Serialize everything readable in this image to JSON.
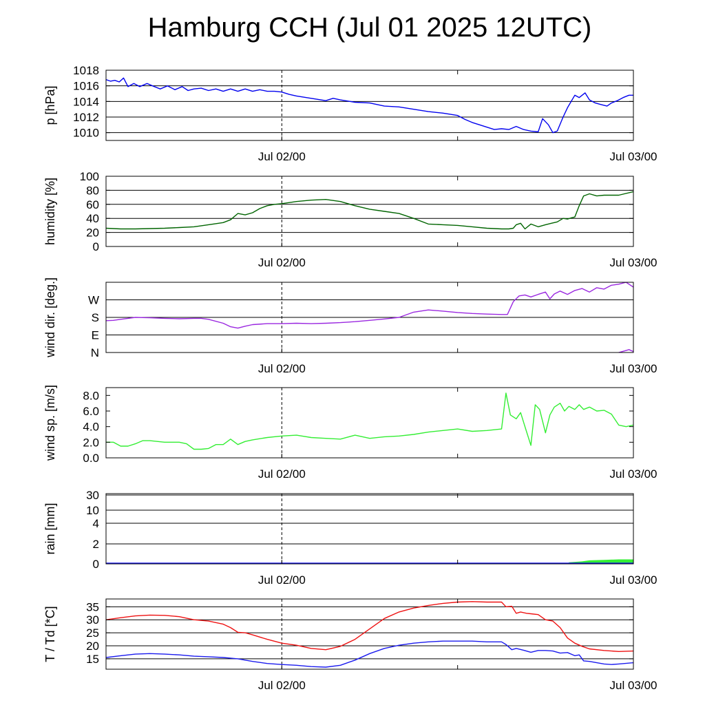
{
  "title": "Hamburg CCH (Jul 01 2025 12UTC)",
  "colors": {
    "pressure": "#0000ee",
    "humidity": "#006400",
    "wind_dir": "#9a27e0",
    "wind_speed": "#33ee33",
    "rain": "#33ee33",
    "temperature": "#ee1111",
    "dewpoint": "#1a1aee"
  },
  "chart_data": [
    {
      "type": "line",
      "id": "pressure",
      "ylabel": "p [hPa]",
      "ylim": [
        1009,
        1018
      ],
      "yticks": [
        1010,
        1012,
        1014,
        1016,
        1018
      ],
      "gridlines": [
        1010,
        1012,
        1014,
        1016
      ],
      "xlim": [
        0,
        36
      ],
      "x_tick_labels": [
        {
          "x": 12,
          "label": "Jul 02/00"
        },
        {
          "x": 36,
          "label": "Jul 03/00"
        }
      ],
      "x_minor_ticks": [
        24
      ],
      "series": [
        {
          "color_key": "pressure",
          "x": [
            0,
            0.3,
            0.6,
            0.9,
            1.2,
            1.5,
            1.9,
            2.3,
            2.8,
            3.3,
            3.7,
            4.2,
            4.7,
            5.2,
            5.6,
            6,
            6.5,
            7,
            7.5,
            8,
            8.5,
            9,
            9.5,
            10,
            10.5,
            11,
            11.5,
            12,
            12.5,
            13,
            14,
            15,
            15.5,
            16,
            17,
            18,
            19,
            20,
            21,
            22,
            23,
            24,
            24.5,
            25,
            25.5,
            26,
            26.5,
            27,
            27.5,
            28,
            28.5,
            29,
            29.5,
            29.8,
            30.2,
            30.5,
            30.8,
            31.2,
            31.5,
            32,
            32.3,
            32.7,
            33,
            33.4,
            33.8,
            34.2,
            34.5,
            34.9,
            35.3,
            35.7,
            36
          ],
          "y": [
            1016.8,
            1016.6,
            1016.7,
            1016.5,
            1017,
            1015.9,
            1016.3,
            1015.9,
            1016.3,
            1015.9,
            1015.6,
            1016,
            1015.5,
            1015.9,
            1015.4,
            1015.6,
            1015.7,
            1015.4,
            1015.6,
            1015.3,
            1015.6,
            1015.3,
            1015.6,
            1015.3,
            1015.5,
            1015.3,
            1015.3,
            1015.2,
            1014.9,
            1014.7,
            1014.4,
            1014.1,
            1014.4,
            1014.2,
            1013.9,
            1013.8,
            1013.4,
            1013.3,
            1013,
            1012.7,
            1012.5,
            1012.2,
            1011.7,
            1011.3,
            1011,
            1010.7,
            1010.4,
            1010.5,
            1010.4,
            1010.8,
            1010.4,
            1010.2,
            1010.1,
            1011.8,
            1011,
            1010,
            1010.2,
            1012,
            1013.2,
            1014.8,
            1014.5,
            1015.1,
            1014.2,
            1013.8,
            1013.6,
            1013.4,
            1013.8,
            1014.1,
            1014.5,
            1014.8,
            1014.8
          ]
        }
      ]
    },
    {
      "type": "line",
      "id": "humidity",
      "ylabel": "humidity [%]",
      "ylim": [
        0,
        100
      ],
      "yticks": [
        0,
        20,
        40,
        60,
        80,
        100
      ],
      "gridlines": [
        20,
        40,
        60,
        80
      ],
      "xlim": [
        0,
        36
      ],
      "x_tick_labels": [
        {
          "x": 12,
          "label": "Jul 02/00"
        },
        {
          "x": 36,
          "label": "Jul 03/00"
        }
      ],
      "x_minor_ticks": [
        24
      ],
      "series": [
        {
          "color_key": "humidity",
          "x": [
            0,
            1,
            2,
            3,
            4,
            5,
            6,
            7,
            8,
            8.5,
            9,
            9.5,
            10,
            10.5,
            11,
            11.5,
            12,
            13,
            14,
            15,
            16,
            17,
            18,
            19,
            20,
            21,
            22,
            23,
            24,
            25,
            26,
            27,
            27.5,
            27.8,
            28,
            28.3,
            28.6,
            29,
            29.5,
            30,
            30.4,
            30.8,
            31.2,
            31.5,
            31.8,
            32,
            32.3,
            32.6,
            33,
            33.5,
            34,
            35,
            36
          ],
          "y": [
            26,
            25,
            25,
            25.5,
            26,
            27,
            28,
            31,
            34,
            38,
            47,
            45,
            48,
            54,
            58,
            60,
            61,
            64,
            66,
            67,
            64,
            58,
            53,
            50,
            47,
            40,
            32,
            31,
            30,
            28,
            26,
            25,
            25,
            26,
            31,
            33,
            25,
            32,
            28,
            31,
            33,
            35,
            40,
            39,
            41,
            42,
            58,
            72,
            75,
            72,
            73,
            73,
            78
          ]
        }
      ]
    },
    {
      "type": "line",
      "id": "wind_dir",
      "ylabel": "wind dir. [deg.]",
      "ylim": [
        0,
        360
      ],
      "ytick_values": [
        0,
        90,
        180,
        270
      ],
      "ytick_labels": [
        "N",
        "E",
        "S",
        "W"
      ],
      "gridlines": [
        90,
        180,
        270
      ],
      "xlim": [
        0,
        36
      ],
      "x_tick_labels": [
        {
          "x": 12,
          "label": "Jul 02/00"
        },
        {
          "x": 36,
          "label": "Jul 03/00"
        }
      ],
      "x_minor_ticks": [
        24
      ],
      "series": [
        {
          "color_key": "wind_dir",
          "x": [
            0,
            0.5,
            1,
            1.5,
            2,
            3,
            4,
            5,
            6,
            6.5,
            7,
            8,
            8.5,
            9,
            9.5,
            10,
            11,
            12,
            13,
            14,
            15,
            16,
            17,
            18,
            19,
            20,
            21,
            22,
            23,
            24,
            25,
            26,
            27,
            27.4,
            27.8,
            28.2,
            28.6,
            29,
            29.5,
            30,
            30.3,
            30.6,
            31,
            31.5,
            32,
            32.5,
            33,
            33.5,
            34,
            34.5,
            35,
            35.5,
            36
          ],
          "y": [
            163,
            165,
            170,
            175,
            180,
            178,
            175,
            173,
            175,
            175,
            170,
            150,
            132,
            125,
            135,
            143,
            148,
            148,
            150,
            148,
            150,
            153,
            158,
            165,
            172,
            180,
            207,
            218,
            212,
            205,
            200,
            197,
            195,
            195,
            260,
            290,
            295,
            285,
            298,
            310,
            275,
            300,
            315,
            298,
            318,
            328,
            310,
            332,
            325,
            345,
            350,
            360,
            335
          ]
        },
        {
          "color_key": "wind_dir",
          "x": [
            35,
            35.4,
            35.7,
            36
          ],
          "y": [
            0,
            8,
            15,
            5
          ]
        }
      ]
    },
    {
      "type": "line",
      "id": "wind_speed",
      "ylabel": "wind sp. [m/s]",
      "ylim": [
        0,
        9
      ],
      "yticks": [
        0,
        2,
        4,
        6,
        8
      ],
      "ytick_labels": [
        "0.0",
        "2.0",
        "4.0",
        "6.0",
        "8.0"
      ],
      "gridlines": [],
      "xlim": [
        0,
        36
      ],
      "x_tick_labels": [
        {
          "x": 12,
          "label": "Jul 02/00"
        },
        {
          "x": 36,
          "label": "Jul 03/00"
        }
      ],
      "x_minor_ticks": [
        24
      ],
      "series": [
        {
          "color_key": "wind_speed",
          "x": [
            0,
            0.5,
            1,
            1.5,
            2,
            2.5,
            3,
            4,
            5,
            5.5,
            6,
            6.5,
            7,
            7.5,
            8,
            8.5,
            9,
            9.5,
            10,
            11,
            12,
            13,
            14,
            15,
            16,
            17,
            18,
            19,
            20,
            21,
            22,
            23,
            24,
            25,
            26,
            27,
            27.3,
            27.6,
            28,
            28.3,
            28.6,
            29,
            29.3,
            29.6,
            30,
            30.3,
            30.6,
            31,
            31.3,
            31.6,
            32,
            32.3,
            32.6,
            33,
            33.5,
            34,
            34.5,
            35,
            35.5,
            36
          ],
          "y": [
            2,
            2,
            1.5,
            1.5,
            1.8,
            2.2,
            2.2,
            2,
            2,
            1.8,
            1.1,
            1.1,
            1.2,
            1.7,
            1.7,
            2.4,
            1.7,
            2.1,
            2.3,
            2.6,
            2.8,
            2.9,
            2.6,
            2.5,
            2.4,
            2.9,
            2.5,
            2.7,
            2.8,
            3,
            3.3,
            3.5,
            3.7,
            3.4,
            3.5,
            3.7,
            8.3,
            5.5,
            5,
            5.8,
            4,
            1.6,
            6.8,
            6.2,
            3.2,
            5.5,
            6.5,
            7,
            6,
            6.6,
            6.2,
            6.8,
            6.2,
            6.5,
            6,
            6.1,
            5.6,
            4.2,
            4,
            4.2
          ]
        }
      ]
    },
    {
      "type": "area",
      "id": "rain",
      "ylabel": "rain [mm]",
      "scale": "nonlinear",
      "ytick_values": [
        0,
        2,
        4,
        10,
        30
      ],
      "ytick_labels": [
        "0",
        "2",
        "4",
        "10",
        "30"
      ],
      "gridlines": [
        2,
        4,
        10,
        30
      ],
      "xlim": [
        0,
        36
      ],
      "x_tick_labels": [
        {
          "x": 12,
          "label": "Jul 02/00"
        },
        {
          "x": 36,
          "label": "Jul 03/00"
        }
      ],
      "x_minor_ticks": [
        24
      ],
      "series": [
        {
          "color_key": "rain",
          "x": [
            0,
            31.5,
            31.6,
            32.5,
            33,
            34,
            35,
            36
          ],
          "y": [
            0,
            0,
            0.15,
            0.25,
            0.35,
            0.4,
            0.45,
            0.45
          ]
        }
      ]
    },
    {
      "type": "line",
      "id": "temperature",
      "ylabel": "T / Td [*C]",
      "ylim": [
        11,
        38
      ],
      "yticks": [
        15,
        20,
        25,
        30,
        35
      ],
      "gridlines": [
        15,
        20,
        25,
        30,
        35
      ],
      "xlim": [
        0,
        36
      ],
      "x_tick_labels": [
        {
          "x": 12,
          "label": "Jul 02/00"
        },
        {
          "x": 36,
          "label": "Jul 03/00"
        }
      ],
      "x_minor_ticks": [
        24
      ],
      "series": [
        {
          "color_key": "temperature",
          "x": [
            0,
            1,
            2,
            3,
            4,
            5,
            6,
            7,
            8,
            8.5,
            9,
            9.5,
            10,
            11,
            12,
            13,
            14,
            15,
            16,
            17,
            18,
            19,
            20,
            21,
            22,
            23,
            24,
            25,
            26,
            27,
            27.3,
            27.7,
            28,
            28.3,
            28.7,
            29,
            29.5,
            30,
            30.5,
            31,
            31.5,
            32,
            32.5,
            33,
            34,
            35,
            36
          ],
          "y": [
            30,
            30.8,
            31.5,
            31.8,
            31.7,
            31.2,
            30,
            29.5,
            28.3,
            27,
            25.2,
            25,
            24.2,
            22.5,
            21,
            20.2,
            19,
            18.5,
            19.8,
            22.5,
            26.5,
            30.5,
            33,
            34.5,
            35.5,
            36.3,
            36.8,
            37,
            36.8,
            36.8,
            35,
            35.2,
            32.5,
            33,
            32.5,
            32.3,
            32,
            30,
            29.5,
            27,
            23,
            21,
            19.8,
            18.8,
            18.2,
            17.8,
            18
          ]
        },
        {
          "color_key": "dewpoint",
          "x": [
            0,
            1,
            2,
            3,
            4,
            5,
            6,
            7,
            8,
            9,
            10,
            11,
            12,
            13,
            14,
            15,
            16,
            17,
            18,
            19,
            20,
            21,
            22,
            23,
            24,
            25,
            26,
            27,
            27.3,
            27.7,
            28,
            28.5,
            29,
            29.5,
            30,
            30.5,
            31,
            31.5,
            32,
            32.3,
            32.6,
            33,
            33.5,
            34,
            34.5,
            35,
            36
          ],
          "y": [
            15.5,
            16.2,
            16.8,
            17,
            16.8,
            16.5,
            16,
            15.8,
            15.5,
            15,
            14,
            13.2,
            12.8,
            12.5,
            12,
            11.8,
            12.5,
            14.5,
            17,
            19,
            20.2,
            21,
            21.5,
            21.8,
            21.8,
            21.8,
            21.5,
            21.5,
            20.5,
            18.5,
            19,
            18.3,
            17.5,
            18.2,
            18.2,
            18,
            17.2,
            17.4,
            16.2,
            16.5,
            14.2,
            14,
            13.5,
            13,
            12.8,
            13,
            13.5
          ]
        }
      ]
    }
  ]
}
